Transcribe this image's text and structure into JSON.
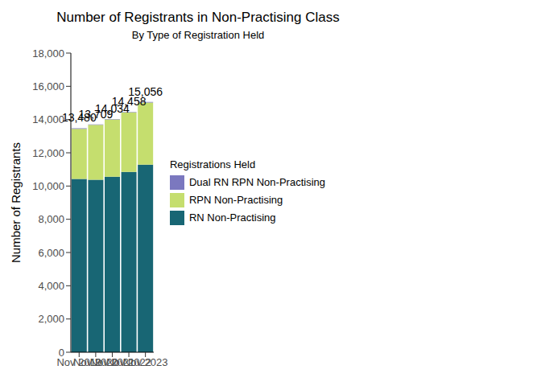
{
  "chart_data": {
    "type": "bar",
    "title": "Number of Registrants in Non-Practising Class",
    "subtitle": "By Type of Registration Held",
    "y_label": "Number of Registrants",
    "legend_title": "Registrations Held",
    "categories": [
      "Nov 2019",
      "Nov 2020",
      "Nov 2021",
      "Nov 2022",
      "Nov 2023"
    ],
    "series": [
      {
        "name": "RN Non-Practising",
        "color": "#186674",
        "values": [
          10430,
          10380,
          10560,
          10850,
          11290
        ]
      },
      {
        "name": "RPN Non-Practising",
        "color": "#c5de6e",
        "values": [
          3015,
          3299,
          3444,
          3578,
          3736
        ]
      },
      {
        "name": "Dual RN RPN Non-Practising",
        "color": "#7b78bf",
        "values": [
          35,
          30,
          30,
          30,
          30
        ]
      }
    ],
    "totals": [
      13480,
      13709,
      14034,
      14458,
      15056
    ],
    "total_labels": [
      "13,480",
      "13,709",
      "14,034",
      "14,458",
      "15,056"
    ],
    "stacked": true,
    "grid": false,
    "legend": "right",
    "ylim": [
      0,
      18000
    ],
    "yticks": [
      0,
      {
        "value": 2000,
        "label": "2,000"
      },
      {
        "value": 4000,
        "label": "4,000"
      },
      {
        "value": 6000,
        "label": "6,000"
      },
      {
        "value": 8000,
        "label": "8,000"
      },
      {
        "value": 10000,
        "label": "10,000"
      },
      {
        "value": 12000,
        "label": "12,000"
      },
      {
        "value": 14000,
        "label": "14,000"
      },
      {
        "value": 16000,
        "label": "16,000"
      },
      {
        "value": 18000,
        "label": "18,000"
      }
    ]
  }
}
